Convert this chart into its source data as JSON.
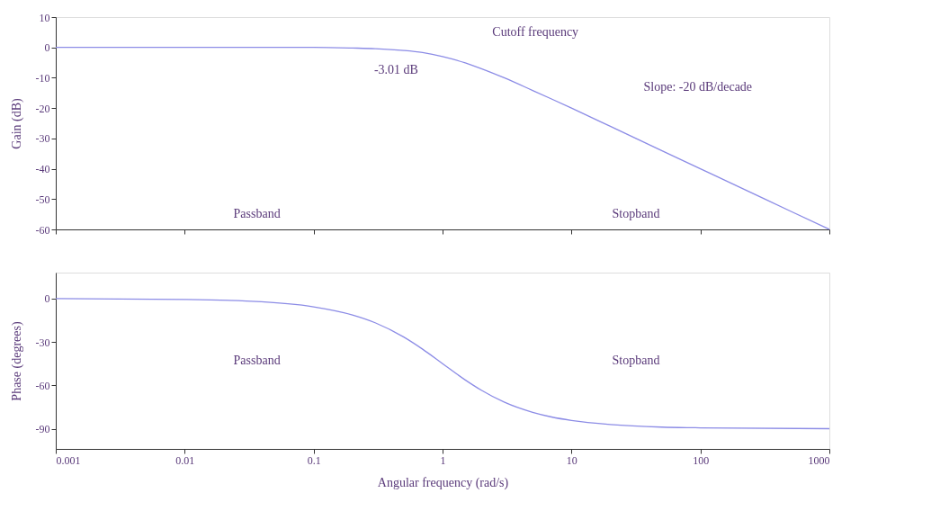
{
  "chart_data": [
    {
      "type": "line",
      "ylabel": "Gain (dB)",
      "log": "x",
      "grid": false,
      "marker": "none",
      "line_style": "solid",
      "tick_labels": "y",
      "xlim": [
        0.001,
        1000
      ],
      "xticks": [
        0.001,
        0.01,
        0.1,
        1,
        10,
        100,
        1000
      ],
      "ylim": [
        -60,
        10
      ],
      "yticks": [
        10,
        0,
        -10,
        -20,
        -30,
        -40,
        -50,
        -60
      ],
      "x": [
        0.001,
        0.01,
        0.1,
        0.2,
        0.3,
        0.5,
        0.7,
        1,
        1.5,
        2,
        3,
        5,
        7,
        10,
        20,
        50,
        100,
        200,
        500,
        1000
      ],
      "series": [
        {
          "color": "#8c8ce6",
          "values": [
            0,
            0,
            0,
            -0.2,
            -0.4,
            -1,
            -1.7,
            -3,
            -5.1,
            -7,
            -10,
            -14.2,
            -17,
            -20,
            -26,
            -34,
            -40,
            -46,
            -54,
            -60
          ]
        }
      ],
      "annotations": [
        "Cutoff frequency",
        "-3.01 dB",
        "Slope: -20 dB/decade",
        "Passband",
        "Stopband"
      ]
    },
    {
      "type": "line",
      "ylabel": "Phase (degrees)",
      "xlabel": "Angular frequency (rad/s)",
      "log": "x",
      "grid": false,
      "marker": "none",
      "line_style": "solid",
      "xlim": [
        0.001,
        1000
      ],
      "xticks": [
        0.001,
        0.01,
        0.1,
        1,
        10,
        100,
        1000
      ],
      "ylim": [
        -104,
        18
      ],
      "yticks": [
        0,
        -30,
        -60,
        -90
      ],
      "x": [
        0.001,
        0.01,
        0.03,
        0.1,
        0.2,
        0.3,
        0.5,
        0.7,
        1,
        1.5,
        2,
        3,
        5,
        7,
        10,
        20,
        50,
        100,
        1000
      ],
      "series": [
        {
          "color": "#8c8ce6",
          "values": [
            0,
            -0.6,
            -1.7,
            -5.7,
            -11.3,
            -16.7,
            -26.6,
            -35,
            -45,
            -56.3,
            -63.4,
            -71.6,
            -78.7,
            -81.9,
            -84.3,
            -87.1,
            -88.9,
            -89.4,
            -90
          ]
        }
      ],
      "annotations": [
        "Passband",
        "Stopband"
      ]
    }
  ]
}
